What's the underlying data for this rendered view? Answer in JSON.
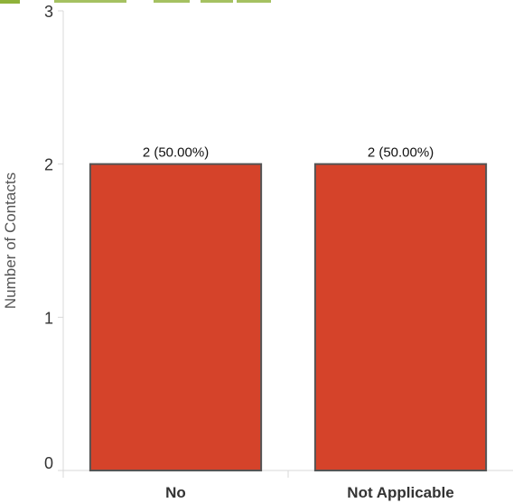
{
  "chart_data": {
    "type": "bar",
    "title": "",
    "xlabel": "",
    "ylabel": "Number of Contacts",
    "categories": [
      "No",
      "Not Applicable"
    ],
    "values": [
      2,
      2
    ],
    "data_labels": [
      "2 (50.00%)",
      "2 (50.00%)"
    ],
    "ylim": [
      0,
      3
    ],
    "yticks": [
      0,
      1,
      2,
      3
    ],
    "ytick_labels": [
      "0",
      "1",
      "2",
      "3"
    ],
    "grid": false,
    "legend": "none",
    "colors": {
      "bar_fill": "#d5432a",
      "bar_stroke": "#555555",
      "axis": "#d9d9d9",
      "text": "#333333",
      "title_green": "#8fb23a"
    }
  }
}
